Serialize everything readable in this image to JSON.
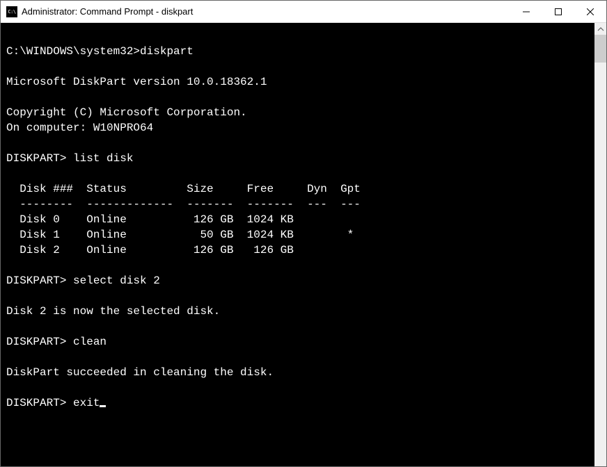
{
  "window": {
    "title": "Administrator: Command Prompt - diskpart"
  },
  "colors": {
    "terminal_bg": "#000000",
    "terminal_fg": "#ffffff",
    "titlebar_bg": "#ffffff",
    "scrollbar_bg": "#f0f0f0",
    "scrollbar_thumb": "#cdcdcd"
  },
  "typography": {
    "terminal_font": "Consolas",
    "terminal_fontsize": 16,
    "terminal_lineheight": 22,
    "title_fontsize": 13
  },
  "terminal": {
    "lines": [
      "",
      "C:\\WINDOWS\\system32>diskpart",
      "",
      "Microsoft DiskPart version 10.0.18362.1",
      "",
      "Copyright (C) Microsoft Corporation.",
      "On computer: W10NPRO64",
      "",
      "DISKPART> list disk",
      "",
      "  Disk ###  Status         Size     Free     Dyn  Gpt",
      "  --------  -------------  -------  -------  ---  ---",
      "  Disk 0    Online          126 GB  1024 KB",
      "  Disk 1    Online           50 GB  1024 KB        *",
      "  Disk 2    Online          126 GB   126 GB",
      "",
      "DISKPART> select disk 2",
      "",
      "Disk 2 is now the selected disk.",
      "",
      "DISKPART> clean",
      "",
      "DiskPart succeeded in cleaning the disk.",
      "",
      "DISKPART> exit"
    ],
    "cursor_on_last": true
  }
}
